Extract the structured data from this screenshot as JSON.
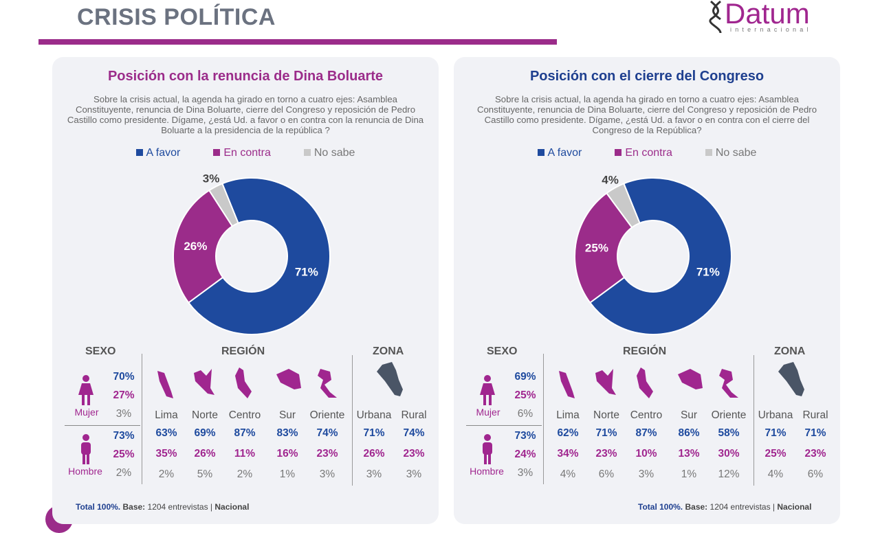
{
  "header": {
    "title": "CRISIS POLÍTICA",
    "logo_name": "Datum",
    "logo_sub": "internacional"
  },
  "colors": {
    "a_favor": "#1e4a9e",
    "en_contra": "#9b2c8a",
    "no_sabe": "#c9c9c9"
  },
  "legend": [
    "A favor",
    "En contra",
    "No sabe"
  ],
  "panels": [
    {
      "title": "Posición con la renuncia de Dina Boluarte",
      "question": "Sobre la crisis actual, la agenda ha girado en torno a cuatro ejes: Asamblea Constituyente, renuncia de Dina Boluarte, cierre del Congreso y reposición de Pedro Castillo como presidente. Dígame, ¿está Ud. a favor o en contra con la renuncia de Dina Boluarte a la presidencia de la república ?",
      "headers": {
        "sexo": "SEXO",
        "region": "REGIÓN",
        "zona": "ZONA"
      },
      "sexo": [
        {
          "label": "Mujer",
          "v": [
            "70%",
            "27%",
            "3%"
          ]
        },
        {
          "label": "Hombre",
          "v": [
            "73%",
            "25%",
            "2%"
          ]
        }
      ],
      "region": [
        {
          "label": "Lima",
          "v": [
            "63%",
            "35%",
            "2%"
          ]
        },
        {
          "label": "Norte",
          "v": [
            "69%",
            "26%",
            "5%"
          ]
        },
        {
          "label": "Centro",
          "v": [
            "87%",
            "11%",
            "2%"
          ]
        },
        {
          "label": "Sur",
          "v": [
            "83%",
            "16%",
            "1%"
          ]
        },
        {
          "label": "Oriente",
          "v": [
            "74%",
            "23%",
            "3%"
          ]
        }
      ],
      "zona": [
        {
          "label": "Urbana",
          "v": [
            "71%",
            "26%",
            "3%"
          ]
        },
        {
          "label": "Rural",
          "v": [
            "74%",
            "23%",
            "3%"
          ]
        }
      ],
      "footer": {
        "total": "Total 100%.",
        "base_label": "Base:",
        "base": "1204 entrevistas",
        "sep": "|",
        "scope": "Nacional"
      }
    },
    {
      "title": "Posición con el cierre del Congreso",
      "question": "Sobre la crisis actual, la agenda ha girado en torno a cuatro ejes: Asamblea Constituyente, renuncia de Dina Boluarte, cierre del Congreso y reposición de Pedro Castillo como presidente. Dígame, ¿está Ud. a favor o en contra con el cierre del Congreso de la República?",
      "headers": {
        "sexo": "SEXO",
        "region": "REGIÓN",
        "zona": "ZONA"
      },
      "sexo": [
        {
          "label": "Mujer",
          "v": [
            "69%",
            "25%",
            "6%"
          ]
        },
        {
          "label": "Hombre",
          "v": [
            "73%",
            "24%",
            "3%"
          ]
        }
      ],
      "region": [
        {
          "label": "Lima",
          "v": [
            "62%",
            "34%",
            "4%"
          ]
        },
        {
          "label": "Norte",
          "v": [
            "71%",
            "23%",
            "6%"
          ]
        },
        {
          "label": "Centro",
          "v": [
            "87%",
            "10%",
            "3%"
          ]
        },
        {
          "label": "Sur",
          "v": [
            "86%",
            "13%",
            "1%"
          ]
        },
        {
          "label": "Oriente",
          "v": [
            "58%",
            "30%",
            "12%"
          ]
        }
      ],
      "zona": [
        {
          "label": "Urbana",
          "v": [
            "71%",
            "25%",
            "4%"
          ]
        },
        {
          "label": "Rural",
          "v": [
            "71%",
            "23%",
            "6%"
          ]
        }
      ],
      "footer": {
        "total": "Total 100%.",
        "base_label": "Base:",
        "base": "1204 entrevistas",
        "sep": "|",
        "scope": "Nacional"
      }
    }
  ],
  "chart_data": [
    {
      "type": "pie",
      "title": "Posición con la renuncia de Dina Boluarte",
      "categories": [
        "A favor",
        "En contra",
        "No sabe"
      ],
      "values": [
        71,
        26,
        3
      ],
      "labels": [
        "71%",
        "26%",
        "3%"
      ],
      "legend": "top"
    },
    {
      "type": "pie",
      "title": "Posición con el cierre del Congreso",
      "categories": [
        "A favor",
        "En contra",
        "No sabe"
      ],
      "values": [
        71,
        25,
        4
      ],
      "labels": [
        "71%",
        "25%",
        "4%"
      ],
      "legend": "top"
    }
  ]
}
